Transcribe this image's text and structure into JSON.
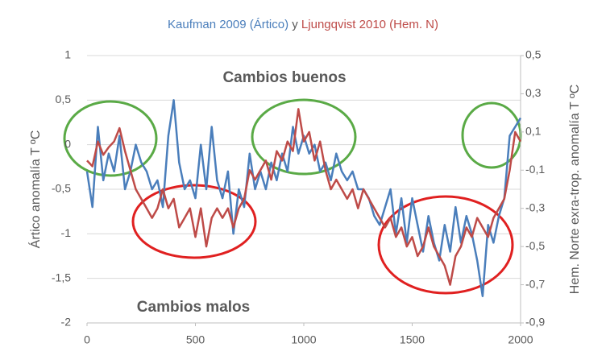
{
  "chart_data": {
    "type": "line",
    "title_joiner": "y",
    "annotations": [
      {
        "text": "Cambios buenos",
        "color": "#5aaa46"
      },
      {
        "text": "Cambios malos",
        "color": "#e02020"
      }
    ],
    "y_label": "Ártico anomalía T ºC",
    "y2_label": "Hem. Norte exra-trop. anomalía T ºC",
    "xlim": [
      0,
      2000
    ],
    "xticks": [
      0,
      500,
      1000,
      1500,
      2000
    ],
    "ylim": [
      -2,
      1
    ],
    "yticks": [
      {
        "value": 1,
        "label": "1"
      },
      {
        "value": 0.5,
        "label": "0,5"
      },
      {
        "value": 0,
        "label": "0"
      },
      {
        "value": -0.5,
        "label": "-0,5"
      },
      {
        "value": -1,
        "label": "-1"
      },
      {
        "value": -1.5,
        "label": "-1,5"
      },
      {
        "value": -2,
        "label": "-2"
      }
    ],
    "y2lim": [
      -0.9,
      0.5
    ],
    "y2ticks": [
      {
        "value": 0.5,
        "label": "0,5"
      },
      {
        "value": 0.3,
        "label": "0,3"
      },
      {
        "value": 0.1,
        "label": "0,1"
      },
      {
        "value": -0.1,
        "label": "-0,1"
      },
      {
        "value": -0.3,
        "label": "-0,3"
      },
      {
        "value": -0.5,
        "label": "-0,5"
      },
      {
        "value": -0.7,
        "label": "-0,7"
      },
      {
        "value": -0.9,
        "label": "-0,9"
      }
    ],
    "grid": true,
    "x": [
      0,
      25,
      50,
      75,
      100,
      125,
      150,
      175,
      200,
      225,
      250,
      275,
      300,
      325,
      350,
      375,
      400,
      425,
      450,
      475,
      500,
      525,
      550,
      575,
      600,
      625,
      650,
      675,
      700,
      725,
      750,
      775,
      800,
      825,
      850,
      875,
      900,
      925,
      950,
      975,
      1000,
      1025,
      1050,
      1075,
      1100,
      1125,
      1150,
      1175,
      1200,
      1225,
      1250,
      1275,
      1300,
      1325,
      1350,
      1375,
      1400,
      1425,
      1450,
      1475,
      1500,
      1525,
      1550,
      1575,
      1600,
      1625,
      1650,
      1675,
      1700,
      1725,
      1750,
      1775,
      1800,
      1825,
      1850,
      1875,
      1900,
      1925,
      1950,
      1975,
      2000
    ],
    "series": [
      {
        "name": "Kaufman 2009 (Ártico)",
        "color": "#4a7ebb",
        "axis": "y",
        "values": [
          -0.3,
          -0.7,
          0.2,
          -0.4,
          -0.1,
          -0.3,
          0.1,
          -0.5,
          -0.3,
          0.0,
          -0.2,
          -0.3,
          -0.5,
          -0.4,
          -0.7,
          0.1,
          0.5,
          -0.2,
          -0.5,
          -0.4,
          -0.6,
          0.0,
          -0.5,
          0.2,
          -0.4,
          -0.6,
          -0.3,
          -1.0,
          -0.5,
          -0.7,
          -0.1,
          -0.5,
          -0.3,
          -0.5,
          -0.2,
          -0.4,
          -0.1,
          -0.3,
          0.2,
          -0.1,
          0.1,
          -0.1,
          0.0,
          -0.3,
          -0.2,
          -0.4,
          -0.1,
          -0.3,
          -0.4,
          -0.3,
          -0.5,
          -0.5,
          -0.6,
          -0.8,
          -0.9,
          -0.7,
          -0.5,
          -1.0,
          -0.6,
          -1.1,
          -0.6,
          -0.9,
          -1.2,
          -0.8,
          -1.1,
          -1.3,
          -0.9,
          -1.2,
          -0.7,
          -1.1,
          -0.8,
          -1.0,
          -1.3,
          -1.7,
          -0.9,
          -1.1,
          -0.8,
          -0.6,
          0.1,
          0.2,
          0.3
        ]
      },
      {
        "name": "Ljungqvist 2010 (Hem. N)",
        "color": "#be4b48",
        "axis": "y2",
        "values": [
          -0.05,
          -0.08,
          0.05,
          -0.02,
          0.02,
          0.05,
          0.12,
          0.0,
          -0.1,
          -0.2,
          -0.25,
          -0.3,
          -0.35,
          -0.3,
          -0.2,
          -0.3,
          -0.25,
          -0.4,
          -0.35,
          -0.3,
          -0.45,
          -0.3,
          -0.5,
          -0.35,
          -0.3,
          -0.35,
          -0.3,
          -0.4,
          -0.3,
          -0.25,
          -0.1,
          -0.15,
          -0.1,
          -0.05,
          -0.15,
          0.0,
          -0.05,
          0.05,
          0.0,
          0.22,
          0.05,
          0.1,
          -0.05,
          0.05,
          -0.1,
          -0.2,
          -0.15,
          -0.2,
          -0.25,
          -0.2,
          -0.3,
          -0.2,
          -0.25,
          -0.3,
          -0.35,
          -0.4,
          -0.35,
          -0.45,
          -0.4,
          -0.5,
          -0.45,
          -0.55,
          -0.5,
          -0.4,
          -0.5,
          -0.55,
          -0.6,
          -0.7,
          -0.55,
          -0.5,
          -0.4,
          -0.45,
          -0.35,
          -0.4,
          -0.45,
          -0.35,
          -0.3,
          -0.25,
          -0.1,
          0.1,
          0.05
        ]
      }
    ]
  }
}
